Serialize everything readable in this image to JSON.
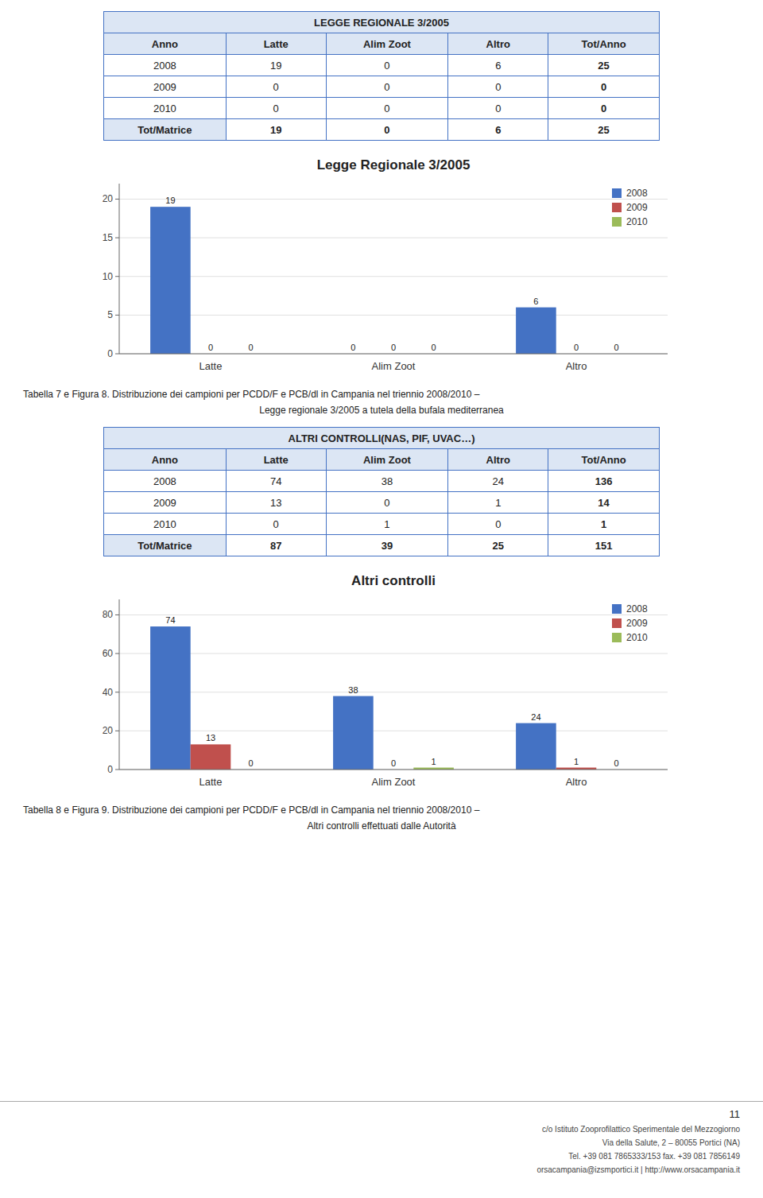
{
  "chart_data": [
    {
      "type": "bar",
      "title": "Legge Regionale 3/2005",
      "categories": [
        "Latte",
        "Alim Zoot",
        "Altro"
      ],
      "series": [
        {
          "name": "2008",
          "color": "#4472c4",
          "values": [
            19,
            0,
            6
          ]
        },
        {
          "name": "2009",
          "color": "#c0504d",
          "values": [
            0,
            0,
            0
          ]
        },
        {
          "name": "2010",
          "color": "#9bbb59",
          "values": [
            0,
            0,
            0
          ]
        }
      ],
      "ylim": [
        0,
        22
      ],
      "yticks": [
        0,
        5,
        10,
        15,
        20
      ],
      "grid": true,
      "legend": "upper right",
      "data_labels": true
    },
    {
      "type": "bar",
      "title": "Altri controlli",
      "categories": [
        "Latte",
        "Alim Zoot",
        "Altro"
      ],
      "series": [
        {
          "name": "2008",
          "color": "#4472c4",
          "values": [
            74,
            38,
            24
          ]
        },
        {
          "name": "2009",
          "color": "#c0504d",
          "values": [
            13,
            0,
            1
          ]
        },
        {
          "name": "2010",
          "color": "#9bbb59",
          "values": [
            0,
            1,
            0
          ]
        }
      ],
      "ylim": [
        0,
        88
      ],
      "yticks": [
        0,
        20,
        40,
        60,
        80
      ],
      "grid": true,
      "legend": "upper right",
      "data_labels": true
    }
  ],
  "tables": [
    {
      "title": "LEGGE REGIONALE 3/2005",
      "header": [
        "Anno",
        "Latte",
        "Alim Zoot",
        "Altro",
        "Tot/Anno"
      ],
      "rows": [
        [
          "2008",
          "19",
          "0",
          "6",
          "25"
        ],
        [
          "2009",
          "0",
          "0",
          "0",
          "0"
        ],
        [
          "2010",
          "0",
          "0",
          "0",
          "0"
        ],
        [
          "Tot/Matrice",
          "19",
          "0",
          "6",
          "25"
        ]
      ]
    },
    {
      "title": "ALTRI CONTROLLI(NAS, PIF, UVAC…)",
      "header": [
        "Anno",
        "Latte",
        "Alim Zoot",
        "Altro",
        "Tot/Anno"
      ],
      "rows": [
        [
          "2008",
          "74",
          "38",
          "24",
          "136"
        ],
        [
          "2009",
          "13",
          "0",
          "1",
          "14"
        ],
        [
          "2010",
          "0",
          "1",
          "0",
          "1"
        ],
        [
          "Tot/Matrice",
          "87",
          "39",
          "25",
          "151"
        ]
      ]
    }
  ],
  "captions": [
    [
      "Tabella 7 e Figura 8. Distribuzione dei campioni per PCDD/F e PCB/dl in Campania nel triennio 2008/2010 –",
      "Legge regionale 3/2005 a tutela della bufala mediterranea"
    ],
    [
      "Tabella 8 e Figura 9. Distribuzione dei campioni per PCDD/F e PCB/dl in Campania nel triennio 2008/2010 –",
      "Altri controlli effettuati dalle Autorità"
    ]
  ],
  "footer": {
    "page_num": "11",
    "lines": [
      "c/o Istituto Zooprofilattico Sperimentale del Mezzogiorno",
      "Via della Salute, 2 – 80055 Portici (NA)",
      "Tel. +39 081 7865333/153  fax. +39 081 7856149",
      "orsacampania@izsmportici.it  |  http://www.orsacampania.it"
    ]
  }
}
